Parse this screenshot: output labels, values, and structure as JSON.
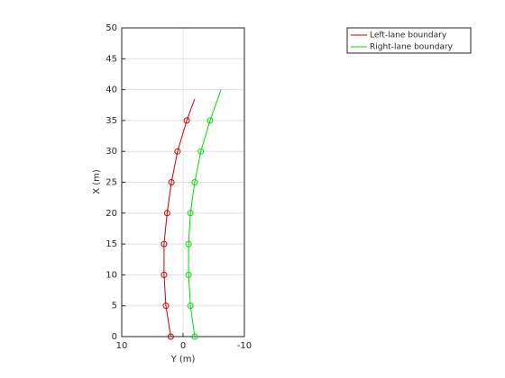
{
  "chart_data": {
    "type": "line",
    "xlabel": "Y (m)",
    "ylabel": "X (m)",
    "xlim": [
      10,
      -10
    ],
    "xticks": [
      10,
      0,
      -10
    ],
    "ylim": [
      0,
      50
    ],
    "yticks": [
      0,
      5,
      10,
      15,
      20,
      25,
      30,
      35,
      40,
      45,
      50
    ],
    "grid": true,
    "legend": "northeast",
    "series": [
      {
        "name": "Left-lane boundary",
        "color": "#cc0000",
        "x": [
          2.0,
          2.8,
          3.1,
          3.1,
          2.6,
          1.9,
          0.9,
          -0.6,
          -1.9
        ],
        "y": [
          0,
          5,
          10,
          15,
          20,
          25,
          30,
          35,
          38.5
        ],
        "marker_x": [
          2.0,
          2.8,
          3.1,
          3.1,
          2.6,
          1.9,
          0.9,
          -0.6
        ],
        "marker_y": [
          0,
          5,
          10,
          15,
          20,
          25,
          30,
          35
        ]
      },
      {
        "name": "Right-lane boundary",
        "color": "#00dd00",
        "x": [
          -1.9,
          -1.2,
          -0.9,
          -0.9,
          -1.2,
          -1.9,
          -2.9,
          -4.4,
          -6.2
        ],
        "y": [
          0,
          5,
          10,
          15,
          20,
          25,
          30,
          35,
          40
        ],
        "marker_x": [
          -1.9,
          -1.2,
          -0.9,
          -0.9,
          -1.2,
          -1.9,
          -2.9,
          -4.4
        ],
        "marker_y": [
          0,
          5,
          10,
          15,
          20,
          25,
          30,
          35
        ]
      }
    ]
  }
}
